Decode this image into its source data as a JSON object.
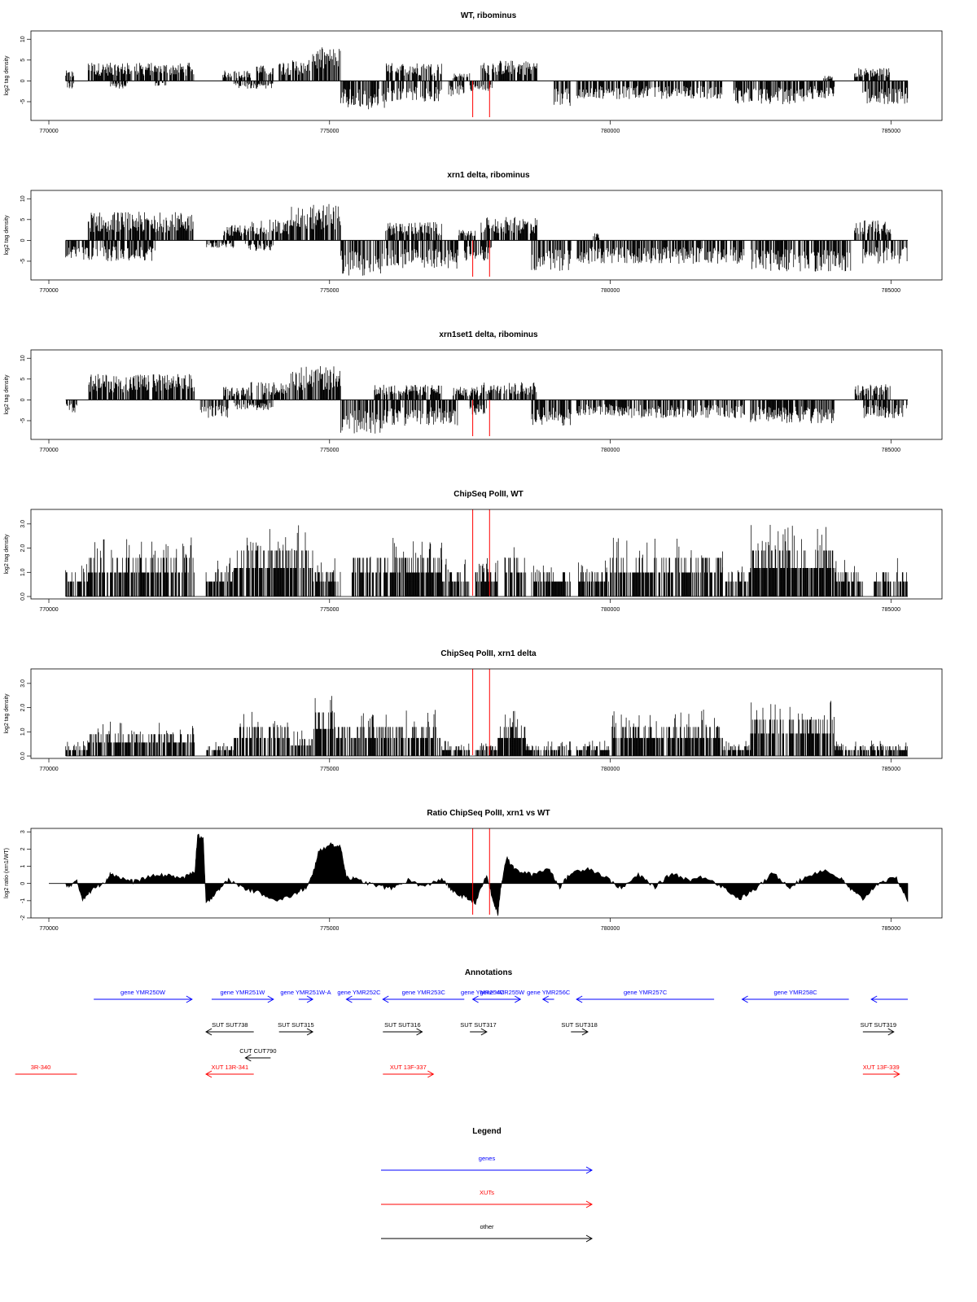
{
  "chart_data": {
    "type": "genome-browser",
    "x_range": [
      770000,
      785300
    ],
    "x_ticks": [
      "770000",
      "775000",
      "780000",
      "785000"
    ],
    "marker_positions": [
      777550,
      777850
    ],
    "marker_color": "#ff0000",
    "panels": [
      {
        "title": "WT, ribominus",
        "ylabel": "log2 tag density",
        "kind": "bidirectional",
        "ylim": [
          -9.5,
          12
        ],
        "yticks": [
          -5,
          0,
          5,
          10
        ],
        "ytick_labels": [
          "-5",
          "0",
          "5",
          "10"
        ],
        "top_segments": [
          [
            770300,
            770450,
            2
          ],
          [
            770700,
            772600,
            3.5
          ],
          [
            773100,
            773600,
            2
          ],
          [
            773700,
            774000,
            3
          ],
          [
            774100,
            774700,
            4
          ],
          [
            774700,
            775200,
            6.5
          ],
          [
            776000,
            777000,
            3.5
          ],
          [
            777200,
            777500,
            1.5
          ],
          [
            777700,
            778700,
            4
          ],
          [
            783800,
            784000,
            1
          ],
          [
            784350,
            785000,
            2.5
          ]
        ],
        "bottom_segments": [
          [
            770300,
            770450,
            -1.5
          ],
          [
            771100,
            771400,
            -1.5
          ],
          [
            771900,
            772100,
            -1
          ],
          [
            773300,
            774000,
            -1.5
          ],
          [
            775200,
            776000,
            -5.5
          ],
          [
            776000,
            777000,
            -4
          ],
          [
            777100,
            777400,
            -3
          ],
          [
            777500,
            777900,
            -2
          ],
          [
            779000,
            779300,
            -5
          ],
          [
            779400,
            780000,
            -3.5
          ],
          [
            780000,
            782000,
            -3.5
          ],
          [
            782200,
            783500,
            -4.5
          ],
          [
            783500,
            784000,
            -3.5
          ],
          [
            784500,
            785300,
            -4.5
          ]
        ]
      },
      {
        "title": "xrn1 delta, ribominus",
        "ylabel": "log2 tag density",
        "kind": "bidirectional",
        "ylim": [
          -9.5,
          12
        ],
        "yticks": [
          -5,
          0,
          5,
          10
        ],
        "ytick_labels": [
          "-5",
          "0",
          "5",
          "10"
        ],
        "top_segments": [
          [
            770700,
            772600,
            5.5
          ],
          [
            773100,
            773600,
            3
          ],
          [
            773600,
            774300,
            4
          ],
          [
            774300,
            775200,
            7
          ],
          [
            776000,
            777000,
            3.5
          ],
          [
            777300,
            777600,
            2
          ],
          [
            777700,
            778700,
            4.5
          ],
          [
            779700,
            779800,
            1.5
          ],
          [
            784350,
            785000,
            4
          ]
        ],
        "bottom_segments": [
          [
            770300,
            770600,
            -4
          ],
          [
            770600,
            771900,
            -4
          ],
          [
            772800,
            773300,
            -1.5
          ],
          [
            773500,
            774000,
            -2
          ],
          [
            775200,
            776000,
            -7
          ],
          [
            776000,
            777300,
            -5.5
          ],
          [
            777400,
            777900,
            -4
          ],
          [
            778600,
            779300,
            -6
          ],
          [
            779400,
            780000,
            -4.5
          ],
          [
            780000,
            782400,
            -4.5
          ],
          [
            782500,
            784300,
            -6
          ],
          [
            784500,
            785300,
            -4.5
          ]
        ]
      },
      {
        "title": "xrn1set1 delta, ribominus",
        "ylabel": "log2 tag density",
        "kind": "bidirectional",
        "ylim": [
          -9.5,
          12
        ],
        "yticks": [
          -5,
          0,
          5,
          10
        ],
        "ytick_labels": [
          "-5",
          "0",
          "5",
          "10"
        ],
        "top_segments": [
          [
            770700,
            772600,
            5
          ],
          [
            773100,
            773600,
            2.5
          ],
          [
            773600,
            774300,
            3.5
          ],
          [
            774300,
            775200,
            6.5
          ],
          [
            775800,
            777000,
            3
          ],
          [
            777200,
            777700,
            2.5
          ],
          [
            777700,
            778700,
            3.5
          ],
          [
            784350,
            785000,
            3
          ]
        ],
        "bottom_segments": [
          [
            770300,
            770500,
            -2.5
          ],
          [
            772700,
            773200,
            -3.5
          ],
          [
            773300,
            774000,
            -2
          ],
          [
            775200,
            776000,
            -6.5
          ],
          [
            776000,
            777300,
            -5
          ],
          [
            777500,
            777800,
            -3
          ],
          [
            778600,
            779300,
            -5
          ],
          [
            779400,
            780000,
            -3
          ],
          [
            780000,
            782400,
            -3.5
          ],
          [
            782500,
            784000,
            -4.5
          ],
          [
            784500,
            785300,
            -3.5
          ]
        ]
      },
      {
        "title": "ChipSeq PolII, WT",
        "ylabel": "log2 tag density",
        "kind": "positive",
        "ylim": [
          -0.1,
          3.6
        ],
        "yticks": [
          0,
          1,
          2,
          3
        ],
        "ytick_labels": [
          "0.0",
          "1.0",
          "2.0",
          "3.0"
        ],
        "top_segments": [
          [
            770300,
            770700,
            1
          ],
          [
            770700,
            772600,
            1.6
          ],
          [
            772800,
            773300,
            1
          ],
          [
            773300,
            774700,
            1.9
          ],
          [
            774700,
            775200,
            1
          ],
          [
            775400,
            777000,
            1.6
          ],
          [
            777000,
            777500,
            1
          ],
          [
            777600,
            778000,
            1
          ],
          [
            778100,
            778500,
            1.6
          ],
          [
            778600,
            779300,
            1
          ],
          [
            779400,
            780000,
            1
          ],
          [
            780000,
            782000,
            1.6
          ],
          [
            782000,
            782500,
            1
          ],
          [
            782500,
            784000,
            1.9
          ],
          [
            784000,
            784500,
            1
          ],
          [
            784700,
            785300,
            1
          ]
        ]
      },
      {
        "title": "ChipSeq PolII, xrn1 delta",
        "ylabel": "log2 tag density",
        "kind": "positive",
        "ylim": [
          -0.1,
          3.6
        ],
        "yticks": [
          0,
          1,
          2,
          3
        ],
        "ytick_labels": [
          "0.0",
          "1.0",
          "2.0",
          "3.0"
        ],
        "top_segments": [
          [
            770300,
            770700,
            0.4
          ],
          [
            770700,
            772600,
            0.9
          ],
          [
            772800,
            773300,
            0.4
          ],
          [
            773300,
            774300,
            1.2
          ],
          [
            774300,
            774700,
            0.7
          ],
          [
            774700,
            775100,
            1.8
          ],
          [
            775100,
            777000,
            1.2
          ],
          [
            777000,
            777500,
            0.4
          ],
          [
            777600,
            778000,
            0.4
          ],
          [
            778000,
            778500,
            1.2
          ],
          [
            778500,
            779300,
            0.4
          ],
          [
            779400,
            780000,
            0.4
          ],
          [
            780000,
            782000,
            1.2
          ],
          [
            782000,
            782500,
            0.4
          ],
          [
            782500,
            784000,
            1.5
          ],
          [
            784000,
            785300,
            0.4
          ]
        ]
      },
      {
        "title": "Ratio ChipSeq PolII, xrn1 vs WT",
        "ylabel": "log2 ratio (xrn1/WT)",
        "kind": "ratio",
        "ylim": [
          -2,
          3.2
        ],
        "yticks": [
          -2,
          -1,
          0,
          1,
          2,
          3
        ],
        "ytick_labels": [
          "-2",
          "-1",
          "0",
          "1",
          "2",
          "3"
        ],
        "points": [
          [
            770300,
            -0.2
          ],
          [
            770500,
            0.1
          ],
          [
            770600,
            -0.9
          ],
          [
            770800,
            -0.3
          ],
          [
            771000,
            0.1
          ],
          [
            771100,
            0.6
          ],
          [
            771300,
            0.3
          ],
          [
            771500,
            0.1
          ],
          [
            771800,
            0.4
          ],
          [
            772100,
            0.5
          ],
          [
            772400,
            0.3
          ],
          [
            772600,
            0.7
          ],
          [
            772650,
            2.8
          ],
          [
            772750,
            2.6
          ],
          [
            772800,
            -1.2
          ],
          [
            773000,
            -0.4
          ],
          [
            773200,
            0.2
          ],
          [
            773500,
            -0.3
          ],
          [
            773800,
            -0.6
          ],
          [
            774100,
            -1
          ],
          [
            774400,
            -0.6
          ],
          [
            774600,
            -0.2
          ],
          [
            774700,
            0.5
          ],
          [
            774800,
            1.8
          ],
          [
            775000,
            2.3
          ],
          [
            775200,
            2.1
          ],
          [
            775300,
            0.4
          ],
          [
            775500,
            0.2
          ],
          [
            775800,
            -0.1
          ],
          [
            776100,
            -0.3
          ],
          [
            776400,
            0.2
          ],
          [
            776700,
            -0.2
          ],
          [
            777000,
            0.3
          ],
          [
            777200,
            -0.5
          ],
          [
            777400,
            -0.8
          ],
          [
            777600,
            -1.1
          ],
          [
            777800,
            0.5
          ],
          [
            777900,
            -0.9
          ],
          [
            778000,
            -1.8
          ],
          [
            778050,
            -0.2
          ],
          [
            778150,
            1.5
          ],
          [
            778300,
            0.8
          ],
          [
            778600,
            0.5
          ],
          [
            778900,
            0.9
          ],
          [
            779100,
            -0.2
          ],
          [
            779300,
            0.6
          ],
          [
            779600,
            0.9
          ],
          [
            779900,
            0.4
          ],
          [
            780200,
            -0.3
          ],
          [
            780500,
            0.5
          ],
          [
            780800,
            -0.2
          ],
          [
            781100,
            0.6
          ],
          [
            781400,
            0.2
          ],
          [
            781700,
            0.4
          ],
          [
            782000,
            -0.2
          ],
          [
            782300,
            -0.9
          ],
          [
            782600,
            -0.3
          ],
          [
            782900,
            0.6
          ],
          [
            783200,
            -0.2
          ],
          [
            783500,
            0.4
          ],
          [
            783800,
            0.8
          ],
          [
            784100,
            0.3
          ],
          [
            784300,
            -0.4
          ],
          [
            784500,
            -0.9
          ],
          [
            784800,
            0.1
          ],
          [
            785100,
            0.3
          ],
          [
            785300,
            -1
          ]
        ]
      }
    ],
    "annotations_title": "Annotations",
    "annotations": [
      {
        "label": "gene YMR250W",
        "start": 770800,
        "end": 772550,
        "dir": 1,
        "row": 0,
        "color": "#0000ff"
      },
      {
        "label": "gene YMR251W",
        "start": 772900,
        "end": 774000,
        "dir": 1,
        "row": 0,
        "color": "#0000ff"
      },
      {
        "label": "gene YMR251W-A",
        "start": 774450,
        "end": 774700,
        "dir": 1,
        "row": 0,
        "color": "#0000ff"
      },
      {
        "label": "gene YMR252C",
        "start": 775300,
        "end": 775750,
        "dir": -1,
        "row": 0,
        "color": "#0000ff"
      },
      {
        "label": "gene YMR253C",
        "start": 775950,
        "end": 777400,
        "dir": -1,
        "row": 0,
        "color": "#0000ff"
      },
      {
        "label": "gene YMR254C",
        "start": 777550,
        "end": 777900,
        "dir": -1,
        "row": 0,
        "color": "#0000ff"
      },
      {
        "label": "gene YMR255W",
        "start": 777750,
        "end": 778400,
        "dir": 1,
        "row": 0,
        "color": "#0000ff"
      },
      {
        "label": "gene YMR256C",
        "start": 778800,
        "end": 779000,
        "dir": -1,
        "row": 0,
        "color": "#0000ff"
      },
      {
        "label": "gene YMR257C",
        "start": 779400,
        "end": 781850,
        "dir": -1,
        "row": 0,
        "color": "#0000ff"
      },
      {
        "label": "gene YMR258C",
        "start": 782350,
        "end": 784250,
        "dir": -1,
        "row": 0,
        "color": "#0000ff"
      },
      {
        "label": "",
        "start": 784650,
        "end": 785300,
        "dir": -1,
        "row": 0,
        "color": "#0000ff"
      },
      {
        "label": "SUT SUT738",
        "start": 772800,
        "end": 773650,
        "dir": -1,
        "row": 1,
        "color": "#000000"
      },
      {
        "label": "SUT SUT315",
        "start": 774100,
        "end": 774700,
        "dir": 1,
        "row": 1,
        "color": "#000000"
      },
      {
        "label": "SUT SUT316",
        "start": 775950,
        "end": 776650,
        "dir": 1,
        "row": 1,
        "color": "#000000"
      },
      {
        "label": "SUT SUT317",
        "start": 777500,
        "end": 777800,
        "dir": 1,
        "row": 1,
        "color": "#000000"
      },
      {
        "label": "SUT SUT318",
        "start": 779300,
        "end": 779600,
        "dir": 1,
        "row": 1,
        "color": "#000000"
      },
      {
        "label": "SUT SUT319",
        "start": 784500,
        "end": 785050,
        "dir": 1,
        "row": 1,
        "color": "#000000"
      },
      {
        "label": "CUT CUT790",
        "start": 773500,
        "end": 773950,
        "dir": -1,
        "row": 2,
        "color": "#000000"
      },
      {
        "label": "3R-340",
        "start": 769400,
        "end": 770500,
        "dir": 0,
        "row": 3,
        "color": "#ff0000"
      },
      {
        "label": "XUT 13R-341",
        "start": 772800,
        "end": 773650,
        "dir": -1,
        "row": 3,
        "color": "#ff0000"
      },
      {
        "label": "XUT 13F-337",
        "start": 775950,
        "end": 776850,
        "dir": 1,
        "row": 3,
        "color": "#ff0000"
      },
      {
        "label": "XUT 13F-339",
        "start": 784500,
        "end": 785150,
        "dir": 1,
        "row": 3,
        "color": "#ff0000"
      }
    ],
    "legend_title": "Legend",
    "legend": [
      {
        "label": "genes",
        "color": "#0000ff"
      },
      {
        "label": "XUTs",
        "color": "#ff0000"
      },
      {
        "label": "other",
        "color": "#000000"
      }
    ]
  }
}
